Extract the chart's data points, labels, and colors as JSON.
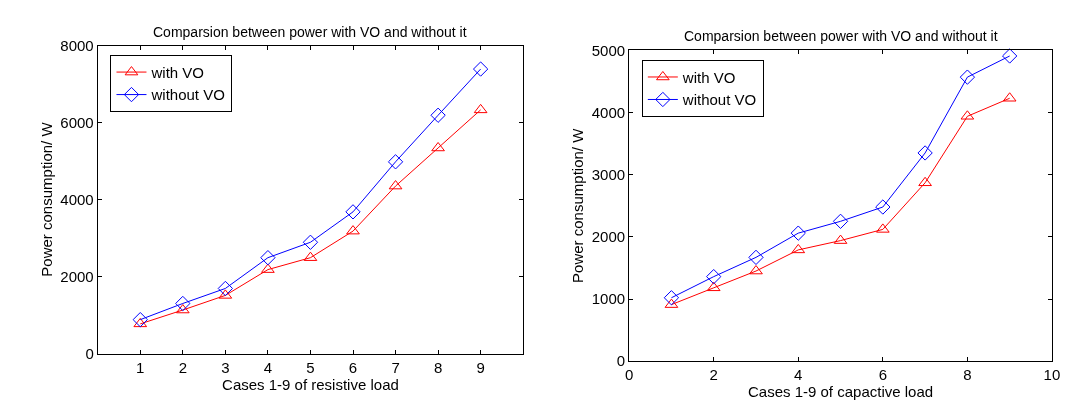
{
  "chart_data": [
    {
      "type": "line",
      "title": "Comparsion between power with VO and without it",
      "xlabel": "Cases 1-9 of resistive load",
      "ylabel": "Power consumption/ W",
      "x": [
        1,
        2,
        3,
        4,
        5,
        6,
        7,
        8,
        9
      ],
      "xlim": [
        0,
        10
      ],
      "xticks": [
        1,
        2,
        3,
        4,
        5,
        6,
        7,
        8,
        9
      ],
      "ylim": [
        0,
        8000
      ],
      "yticks": [
        0,
        2000,
        4000,
        6000,
        8000
      ],
      "legend": "top left",
      "series": [
        {
          "name": "with VO",
          "color": "#ff0000",
          "marker": "triangle",
          "values": [
            770,
            1130,
            1510,
            2180,
            2490,
            3180,
            4350,
            5340,
            6330
          ]
        },
        {
          "name": "without VO",
          "color": "#0000ff",
          "marker": "diamond",
          "values": [
            880,
            1300,
            1690,
            2490,
            2890,
            3680,
            4980,
            6190,
            7390
          ]
        }
      ]
    },
    {
      "type": "line",
      "title": "Comparsion between power with VO and without it",
      "xlabel": "Cases 1-9 of capactive load",
      "ylabel": "Power consumption/ W",
      "x": [
        1,
        2,
        3,
        4,
        5,
        6,
        7,
        8,
        9
      ],
      "xlim": [
        0,
        10
      ],
      "xticks": [
        0,
        2,
        4,
        6,
        8,
        10
      ],
      "ylim": [
        0,
        5000
      ],
      "yticks": [
        0,
        1000,
        2000,
        3000,
        4000,
        5000
      ],
      "legend": "top left",
      "series": [
        {
          "name": "with VO",
          "color": "#ff0000",
          "marker": "triangle",
          "values": [
            910,
            1180,
            1450,
            1790,
            1940,
            2120,
            2870,
            3940,
            4230
          ]
        },
        {
          "name": "without VO",
          "color": "#0000ff",
          "marker": "diamond",
          "values": [
            1020,
            1360,
            1670,
            2060,
            2250,
            2480,
            3350,
            4570,
            4910
          ]
        }
      ]
    }
  ]
}
